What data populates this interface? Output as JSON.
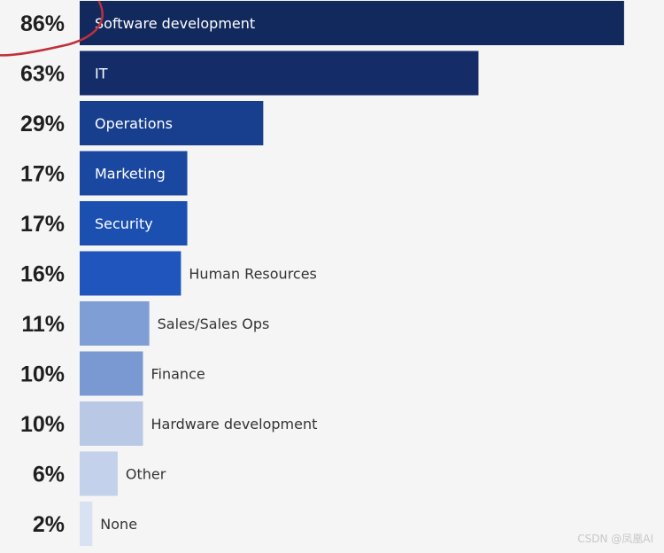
{
  "chart_data": {
    "type": "bar",
    "orientation": "horizontal",
    "categories": [
      "Software development",
      "IT",
      "Operations",
      "Marketing",
      "Security",
      "Human Resources",
      "Sales/Sales Ops",
      "Finance",
      "Hardware development",
      "Other",
      "None"
    ],
    "values": [
      86,
      63,
      29,
      17,
      17,
      16,
      11,
      10,
      10,
      6,
      2
    ],
    "value_labels": [
      "86%",
      "63%",
      "29%",
      "17%",
      "17%",
      "16%",
      "11%",
      "10%",
      "10%",
      "6%",
      "2%"
    ],
    "bar_colors": [
      "#12295e",
      "#142d69",
      "#173f8e",
      "#1a47a0",
      "#1b4fb0",
      "#1f55bc",
      "#7f9ed6",
      "#7a99d2",
      "#b9c8e4",
      "#c4d1ea",
      "#d9e2f3"
    ],
    "label_colors_inside": "#ffffff",
    "label_colors_outside": "#333333",
    "highlight": {
      "category": "Software development",
      "style": "red hand-drawn circle",
      "color": "#c0303a"
    },
    "xlim": [
      0,
      100
    ],
    "grid": false,
    "legend": "none"
  },
  "watermark": "CSDN @凤凰AI"
}
